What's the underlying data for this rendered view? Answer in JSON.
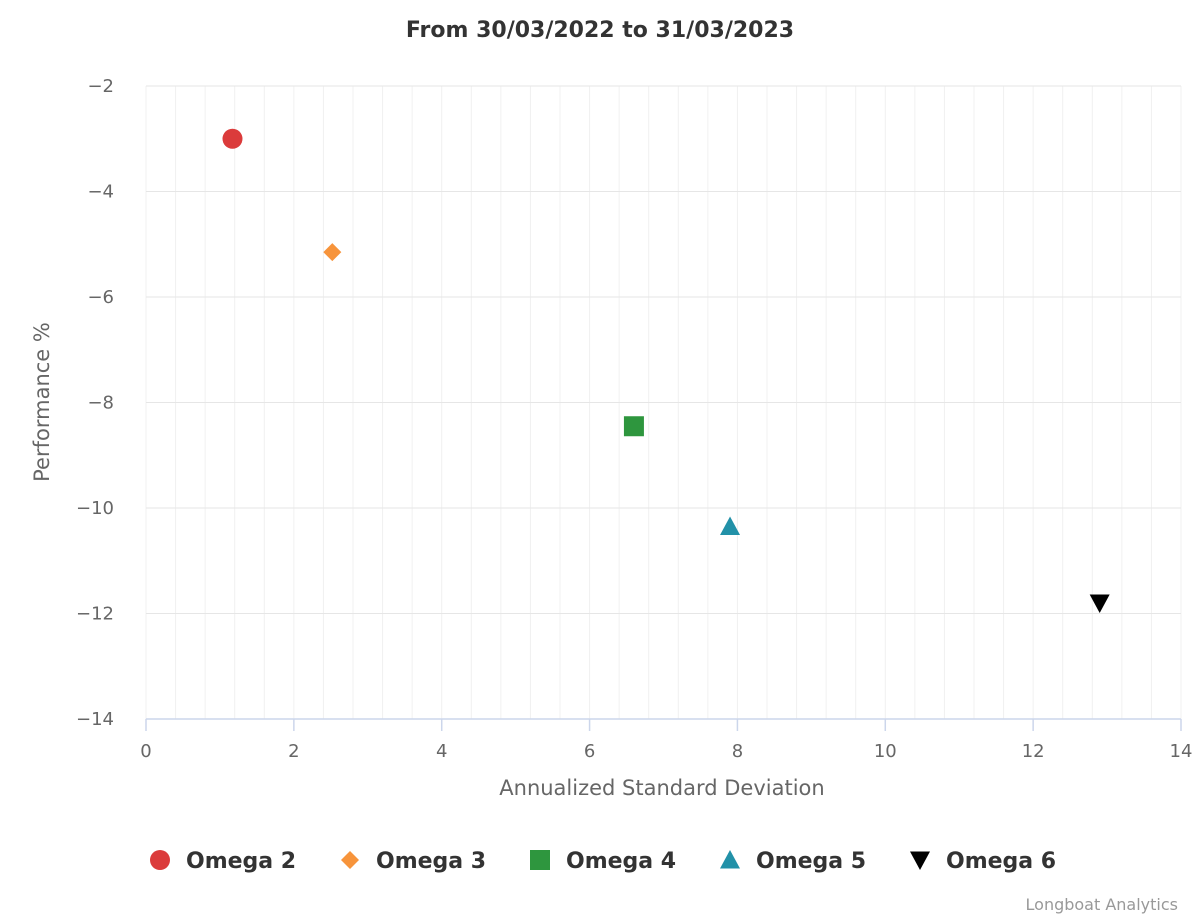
{
  "chart_data": {
    "type": "scatter",
    "title": "From 30/03/2022 to 31/03/2023",
    "xlabel": "Annualized Standard Deviation",
    "ylabel": "Performance %",
    "xlim": [
      0,
      14
    ],
    "ylim": [
      -14,
      -2
    ],
    "x_ticks": [
      0,
      2,
      4,
      6,
      8,
      10,
      12,
      14
    ],
    "x_tick_labels": [
      "0",
      "2",
      "4",
      "6",
      "8",
      "10",
      "12",
      "14"
    ],
    "x_minor_step": 0.4,
    "y_ticks": [
      -14,
      -12,
      -10,
      -8,
      -6,
      -4,
      -2
    ],
    "y_tick_labels": [
      "−14",
      "−12",
      "−10",
      "−8",
      "−6",
      "−4",
      "−2"
    ],
    "grid": true,
    "legend_position": "bottom",
    "series": [
      {
        "name": "Omega 2",
        "marker": "circle",
        "color": "#db3b3b",
        "points": [
          {
            "x": 1.17,
            "y": -3.0
          }
        ]
      },
      {
        "name": "Omega 3",
        "marker": "diamond",
        "color": "#f7943b",
        "points": [
          {
            "x": 2.52,
            "y": -5.15
          }
        ]
      },
      {
        "name": "Omega 4",
        "marker": "square",
        "color": "#2e963e",
        "points": [
          {
            "x": 6.6,
            "y": -8.45
          }
        ]
      },
      {
        "name": "Omega 5",
        "marker": "triangle",
        "color": "#2291a8",
        "points": [
          {
            "x": 7.9,
            "y": -10.35
          }
        ]
      },
      {
        "name": "Omega 6",
        "marker": "triangle-down",
        "color": "#000000",
        "points": [
          {
            "x": 12.9,
            "y": -11.8
          }
        ]
      }
    ],
    "credits": "Longboat Analytics"
  }
}
